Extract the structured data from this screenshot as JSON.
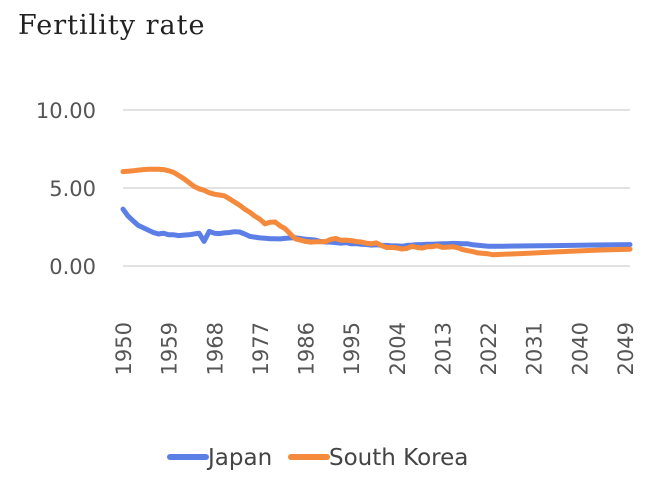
{
  "chart_data": {
    "type": "line",
    "title": "Fertility rate",
    "xlabel": "",
    "ylabel": "",
    "ylim": [
      0,
      10
    ],
    "grid": true,
    "legend_position": "bottom",
    "y_ticks": [
      "0.00",
      "5.00",
      "10.00"
    ],
    "x_ticks": [
      "1950",
      "1959",
      "1968",
      "1977",
      "1986",
      "1995",
      "2004",
      "2013",
      "2022",
      "2031",
      "2040",
      "2049"
    ],
    "series": [
      {
        "name": "Japan",
        "color": "#5b7fe6",
        "points": [
          [
            1950,
            3.65
          ],
          [
            1951,
            3.2
          ],
          [
            1952,
            2.9
          ],
          [
            1953,
            2.6
          ],
          [
            1954,
            2.45
          ],
          [
            1955,
            2.3
          ],
          [
            1956,
            2.15
          ],
          [
            1957,
            2.05
          ],
          [
            1958,
            2.1
          ],
          [
            1959,
            2.0
          ],
          [
            1960,
            2.0
          ],
          [
            1961,
            1.95
          ],
          [
            1962,
            1.98
          ],
          [
            1963,
            2.0
          ],
          [
            1964,
            2.05
          ],
          [
            1965,
            2.1
          ],
          [
            1966,
            1.58
          ],
          [
            1967,
            2.22
          ],
          [
            1968,
            2.1
          ],
          [
            1969,
            2.08
          ],
          [
            1970,
            2.12
          ],
          [
            1971,
            2.15
          ],
          [
            1972,
            2.2
          ],
          [
            1973,
            2.18
          ],
          [
            1974,
            2.05
          ],
          [
            1975,
            1.9
          ],
          [
            1976,
            1.85
          ],
          [
            1977,
            1.8
          ],
          [
            1978,
            1.78
          ],
          [
            1979,
            1.75
          ],
          [
            1980,
            1.75
          ],
          [
            1981,
            1.74
          ],
          [
            1982,
            1.77
          ],
          [
            1983,
            1.8
          ],
          [
            1984,
            1.81
          ],
          [
            1985,
            1.76
          ],
          [
            1986,
            1.72
          ],
          [
            1987,
            1.69
          ],
          [
            1988,
            1.66
          ],
          [
            1989,
            1.57
          ],
          [
            1990,
            1.54
          ],
          [
            1991,
            1.53
          ],
          [
            1992,
            1.5
          ],
          [
            1993,
            1.46
          ],
          [
            1994,
            1.5
          ],
          [
            1995,
            1.42
          ],
          [
            1996,
            1.43
          ],
          [
            1997,
            1.39
          ],
          [
            1998,
            1.38
          ],
          [
            1999,
            1.34
          ],
          [
            2000,
            1.36
          ],
          [
            2001,
            1.33
          ],
          [
            2002,
            1.32
          ],
          [
            2003,
            1.29
          ],
          [
            2004,
            1.29
          ],
          [
            2005,
            1.26
          ],
          [
            2006,
            1.32
          ],
          [
            2007,
            1.34
          ],
          [
            2008,
            1.37
          ],
          [
            2009,
            1.37
          ],
          [
            2010,
            1.39
          ],
          [
            2011,
            1.39
          ],
          [
            2012,
            1.41
          ],
          [
            2013,
            1.43
          ],
          [
            2014,
            1.42
          ],
          [
            2015,
            1.45
          ],
          [
            2016,
            1.44
          ],
          [
            2017,
            1.43
          ],
          [
            2018,
            1.42
          ],
          [
            2019,
            1.36
          ],
          [
            2020,
            1.33
          ],
          [
            2021,
            1.3
          ],
          [
            2022,
            1.27
          ],
          [
            2025,
            1.27
          ],
          [
            2030,
            1.29
          ],
          [
            2035,
            1.31
          ],
          [
            2040,
            1.33
          ],
          [
            2045,
            1.35
          ],
          [
            2050,
            1.37
          ]
        ]
      },
      {
        "name": "South Korea",
        "color": "#f58a3c",
        "points": [
          [
            1950,
            6.05
          ],
          [
            1951,
            6.08
          ],
          [
            1952,
            6.1
          ],
          [
            1953,
            6.15
          ],
          [
            1954,
            6.18
          ],
          [
            1955,
            6.2
          ],
          [
            1956,
            6.2
          ],
          [
            1957,
            6.2
          ],
          [
            1958,
            6.18
          ],
          [
            1959,
            6.1
          ],
          [
            1960,
            6.0
          ],
          [
            1961,
            5.8
          ],
          [
            1962,
            5.6
          ],
          [
            1963,
            5.35
          ],
          [
            1964,
            5.1
          ],
          [
            1965,
            4.95
          ],
          [
            1966,
            4.85
          ],
          [
            1967,
            4.7
          ],
          [
            1968,
            4.6
          ],
          [
            1969,
            4.55
          ],
          [
            1970,
            4.5
          ],
          [
            1971,
            4.3
          ],
          [
            1972,
            4.1
          ],
          [
            1973,
            3.9
          ],
          [
            1974,
            3.65
          ],
          [
            1975,
            3.45
          ],
          [
            1976,
            3.2
          ],
          [
            1977,
            3.0
          ],
          [
            1978,
            2.7
          ],
          [
            1979,
            2.8
          ],
          [
            1980,
            2.82
          ],
          [
            1981,
            2.57
          ],
          [
            1982,
            2.39
          ],
          [
            1983,
            2.06
          ],
          [
            1984,
            1.74
          ],
          [
            1985,
            1.66
          ],
          [
            1986,
            1.58
          ],
          [
            1987,
            1.53
          ],
          [
            1988,
            1.55
          ],
          [
            1989,
            1.56
          ],
          [
            1990,
            1.57
          ],
          [
            1991,
            1.71
          ],
          [
            1992,
            1.76
          ],
          [
            1993,
            1.65
          ],
          [
            1994,
            1.66
          ],
          [
            1995,
            1.63
          ],
          [
            1996,
            1.57
          ],
          [
            1997,
            1.54
          ],
          [
            1998,
            1.46
          ],
          [
            1999,
            1.43
          ],
          [
            2000,
            1.48
          ],
          [
            2001,
            1.31
          ],
          [
            2002,
            1.18
          ],
          [
            2003,
            1.19
          ],
          [
            2004,
            1.16
          ],
          [
            2005,
            1.09
          ],
          [
            2006,
            1.13
          ],
          [
            2007,
            1.26
          ],
          [
            2008,
            1.19
          ],
          [
            2009,
            1.15
          ],
          [
            2010,
            1.23
          ],
          [
            2011,
            1.24
          ],
          [
            2012,
            1.3
          ],
          [
            2013,
            1.19
          ],
          [
            2014,
            1.21
          ],
          [
            2015,
            1.24
          ],
          [
            2016,
            1.17
          ],
          [
            2017,
            1.05
          ],
          [
            2018,
            0.98
          ],
          [
            2019,
            0.92
          ],
          [
            2020,
            0.84
          ],
          [
            2021,
            0.81
          ],
          [
            2022,
            0.78
          ],
          [
            2023,
            0.72
          ],
          [
            2025,
            0.75
          ],
          [
            2030,
            0.82
          ],
          [
            2035,
            0.9
          ],
          [
            2040,
            0.97
          ],
          [
            2045,
            1.03
          ],
          [
            2050,
            1.08
          ]
        ]
      }
    ]
  }
}
